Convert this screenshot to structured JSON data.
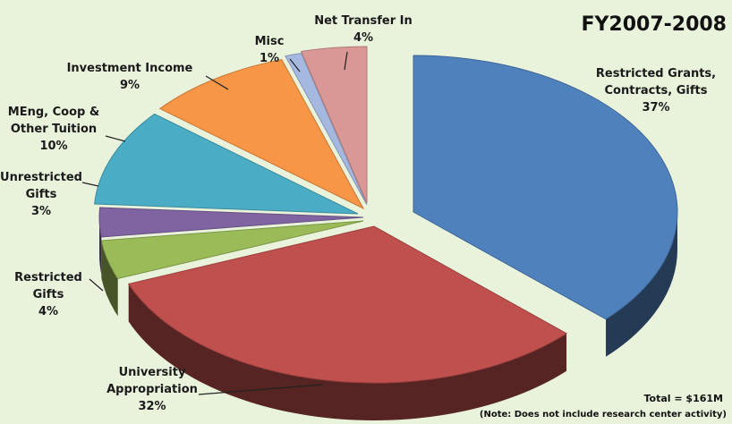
{
  "chart_data": {
    "type": "pie",
    "title": "FY2007-2008",
    "total_label": "Total = $161M",
    "note": "(Note: Does not include research center activity)",
    "slices": [
      {
        "name": "Restricted Grants, Contracts, Gifts",
        "lines": [
          "Restricted Grants,",
          "Contracts, Gifts"
        ],
        "value": 37,
        "pct_label": "37%",
        "color": "#4f81bd"
      },
      {
        "name": "University Appropriation",
        "lines": [
          "University",
          "Appropriation"
        ],
        "value": 32,
        "pct_label": "32%",
        "color": "#c0504d"
      },
      {
        "name": "Restricted Gifts",
        "lines": [
          "Restricted",
          "Gifts"
        ],
        "value": 4,
        "pct_label": "4%",
        "color": "#9bbb59"
      },
      {
        "name": "Unrestricted Gifts",
        "lines": [
          "Unrestricted",
          "Gifts"
        ],
        "value": 3,
        "pct_label": "3%",
        "color": "#8064a2"
      },
      {
        "name": "MEng, Coop & Other Tuition",
        "lines": [
          "MEng, Coop &",
          "Other Tuition"
        ],
        "value": 10,
        "pct_label": "10%",
        "color": "#4bacc6"
      },
      {
        "name": "Investment Income",
        "lines": [
          "Investment Income"
        ],
        "value": 9,
        "pct_label": "9%",
        "color": "#f79646"
      },
      {
        "name": "Misc",
        "lines": [
          "Misc"
        ],
        "value": 1,
        "pct_label": "1%",
        "color": "#a5b8e0"
      },
      {
        "name": "Net Transfer In",
        "lines": [
          "Net Transfer In"
        ],
        "value": 4,
        "pct_label": "4%",
        "color": "#d99795"
      }
    ]
  }
}
